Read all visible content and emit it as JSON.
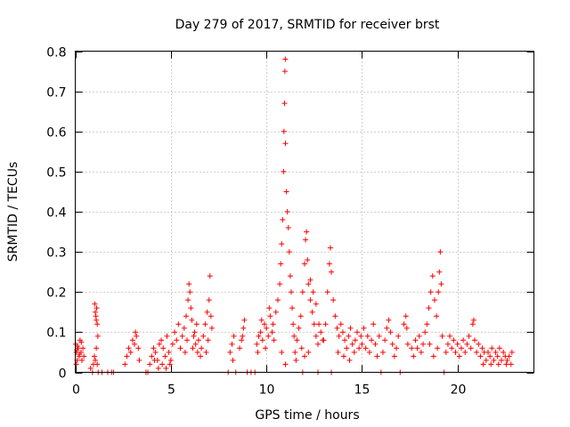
{
  "chart_data": {
    "type": "scatter",
    "title": "Day 279 of 2017, SRMTID for receiver brst",
    "xlabel": "GPS time / hours",
    "ylabel": "SRMTID / TECUs",
    "xlim": [
      0,
      24
    ],
    "ylim": [
      0,
      0.8
    ],
    "xticks": [
      0,
      5,
      10,
      15,
      20
    ],
    "yticks": [
      0,
      0.1,
      0.2,
      0.3,
      0.4,
      0.5,
      0.6,
      0.7,
      0.8
    ],
    "ytick_labels": [
      "0",
      "0.1",
      "0.2",
      "0.3",
      "0.4",
      "0.5",
      "0.6",
      "0.7",
      "0.8"
    ],
    "grid": true,
    "marker": "plus",
    "color": "#ff0000",
    "series": [
      {
        "points": [
          [
            0.02,
            0.07
          ],
          [
            0.05,
            0.05
          ],
          [
            0.1,
            0.03
          ],
          [
            0.15,
            0.06
          ],
          [
            0.2,
            0.04
          ],
          [
            0.25,
            0.08
          ],
          [
            0.3,
            0.05
          ],
          [
            0.35,
            0.03
          ],
          [
            0.4,
            0.06
          ],
          [
            0.45,
            0.04
          ],
          [
            0.05,
            0.02
          ],
          [
            0.12,
            0.065
          ],
          [
            0.22,
            0.045
          ],
          [
            0.32,
            0.075
          ],
          [
            0.08,
            0.055
          ],
          [
            0.8,
            0.01
          ],
          [
            0.9,
            0.0
          ],
          [
            0.95,
            0.02
          ],
          [
            1.0,
            0.04
          ],
          [
            1.05,
            0.03
          ],
          [
            1.1,
            0.06
          ],
          [
            1.15,
            0.02
          ],
          [
            1.2,
            0.0
          ],
          [
            1.02,
            0.17
          ],
          [
            1.05,
            0.15
          ],
          [
            1.08,
            0.14
          ],
          [
            1.1,
            0.13
          ],
          [
            1.12,
            0.16
          ],
          [
            1.15,
            0.12
          ],
          [
            1.18,
            0.09
          ],
          [
            1.4,
            0.0
          ],
          [
            1.7,
            0.0
          ],
          [
            1.9,
            0.0
          ],
          [
            2.0,
            0.0
          ],
          [
            2.6,
            0.02
          ],
          [
            2.7,
            0.04
          ],
          [
            2.8,
            0.06
          ],
          [
            2.9,
            0.05
          ],
          [
            3.0,
            0.08
          ],
          [
            3.1,
            0.07
          ],
          [
            3.2,
            0.09
          ],
          [
            3.3,
            0.06
          ],
          [
            3.35,
            0.03
          ],
          [
            3.15,
            0.1
          ],
          [
            3.7,
            0.0
          ],
          [
            3.8,
            0.0
          ],
          [
            3.9,
            0.02
          ],
          [
            4.0,
            0.04
          ],
          [
            4.1,
            0.06
          ],
          [
            4.2,
            0.05
          ],
          [
            4.3,
            0.03
          ],
          [
            4.4,
            0.07
          ],
          [
            4.5,
            0.08
          ],
          [
            4.6,
            0.06
          ],
          [
            4.7,
            0.04
          ],
          [
            4.8,
            0.09
          ],
          [
            4.9,
            0.05
          ],
          [
            5.0,
            0.03
          ],
          [
            5.1,
            0.07
          ],
          [
            5.2,
            0.1
          ],
          [
            5.3,
            0.08
          ],
          [
            5.4,
            0.12
          ],
          [
            5.5,
            0.06
          ],
          [
            5.6,
            0.09
          ],
          [
            4.15,
            0.03
          ],
          [
            4.35,
            0.01
          ],
          [
            4.55,
            0.02
          ],
          [
            4.75,
            0.01
          ],
          [
            4.95,
            0.02
          ],
          [
            5.7,
            0.11
          ],
          [
            5.8,
            0.14
          ],
          [
            5.9,
            0.18
          ],
          [
            5.95,
            0.22
          ],
          [
            6.0,
            0.2
          ],
          [
            6.05,
            0.16
          ],
          [
            6.1,
            0.13
          ],
          [
            6.2,
            0.09
          ],
          [
            6.3,
            0.07
          ],
          [
            6.4,
            0.05
          ],
          [
            5.75,
            0.05
          ],
          [
            5.85,
            0.08
          ],
          [
            6.15,
            0.06
          ],
          [
            6.25,
            0.1
          ],
          [
            6.35,
            0.12
          ],
          [
            6.45,
            0.08
          ],
          [
            6.55,
            0.04
          ],
          [
            6.6,
            0.06
          ],
          [
            6.7,
            0.09
          ],
          [
            6.8,
            0.12
          ],
          [
            6.9,
            0.15
          ],
          [
            7.0,
            0.18
          ],
          [
            7.05,
            0.24
          ],
          [
            7.1,
            0.14
          ],
          [
            7.15,
            0.11
          ],
          [
            6.95,
            0.08
          ],
          [
            6.85,
            0.05
          ],
          [
            8.0,
            0.0
          ],
          [
            8.1,
            0.05
          ],
          [
            8.2,
            0.07
          ],
          [
            8.3,
            0.09
          ],
          [
            8.25,
            0.03
          ],
          [
            8.4,
            0.0
          ],
          [
            8.6,
            0.06
          ],
          [
            8.7,
            0.08
          ],
          [
            8.8,
            0.11
          ],
          [
            8.85,
            0.13
          ],
          [
            8.75,
            0.09
          ],
          [
            9.0,
            0.0
          ],
          [
            9.2,
            0.0
          ],
          [
            9.4,
            0.0
          ],
          [
            9.5,
            0.07
          ],
          [
            9.6,
            0.09
          ],
          [
            9.7,
            0.1
          ],
          [
            9.8,
            0.08
          ],
          [
            9.9,
            0.12
          ],
          [
            10.0,
            0.11
          ],
          [
            10.1,
            0.09
          ],
          [
            10.2,
            0.14
          ],
          [
            10.3,
            0.1
          ],
          [
            10.4,
            0.08
          ],
          [
            9.55,
            0.05
          ],
          [
            9.75,
            0.13
          ],
          [
            9.95,
            0.06
          ],
          [
            10.15,
            0.16
          ],
          [
            10.35,
            0.12
          ],
          [
            10.5,
            0.15
          ],
          [
            10.6,
            0.18
          ],
          [
            10.7,
            0.22
          ],
          [
            10.75,
            0.27
          ],
          [
            10.8,
            0.32
          ],
          [
            10.85,
            0.38
          ],
          [
            10.9,
            0.5
          ],
          [
            10.92,
            0.6
          ],
          [
            10.95,
            0.67
          ],
          [
            10.97,
            0.75
          ],
          [
            10.99,
            0.78
          ],
          [
            11.0,
            0.57
          ],
          [
            11.05,
            0.45
          ],
          [
            11.1,
            0.4
          ],
          [
            11.15,
            0.36
          ],
          [
            11.2,
            0.3
          ],
          [
            11.25,
            0.24
          ],
          [
            11.3,
            0.2
          ],
          [
            11.35,
            0.16
          ],
          [
            11.4,
            0.12
          ],
          [
            11.45,
            0.09
          ],
          [
            11.5,
            0.05
          ],
          [
            11.55,
            0.03
          ],
          [
            11.0,
            0.02
          ],
          [
            10.8,
            0.05
          ],
          [
            11.6,
            0.08
          ],
          [
            11.7,
            0.11
          ],
          [
            11.8,
            0.14
          ],
          [
            11.9,
            0.2
          ],
          [
            12.0,
            0.27
          ],
          [
            12.05,
            0.33
          ],
          [
            12.1,
            0.35
          ],
          [
            12.15,
            0.28
          ],
          [
            12.2,
            0.22
          ],
          [
            12.3,
            0.18
          ],
          [
            12.4,
            0.15
          ],
          [
            12.5,
            0.12
          ],
          [
            12.6,
            0.09
          ],
          [
            12.7,
            0.07
          ],
          [
            12.3,
            0.23
          ],
          [
            12.45,
            0.2
          ],
          [
            12.6,
            0.17
          ],
          [
            12.75,
            0.12
          ],
          [
            12.85,
            0.1
          ],
          [
            12.95,
            0.08
          ],
          [
            11.85,
            0.06
          ],
          [
            12.0,
            0.04
          ],
          [
            12.2,
            0.05
          ],
          [
            11.9,
            0.0
          ],
          [
            12.7,
            0.0
          ],
          [
            13.0,
            0.08
          ],
          [
            13.1,
            0.12
          ],
          [
            13.2,
            0.2
          ],
          [
            13.3,
            0.27
          ],
          [
            13.35,
            0.31
          ],
          [
            13.4,
            0.25
          ],
          [
            13.5,
            0.18
          ],
          [
            13.6,
            0.14
          ],
          [
            13.7,
            0.11
          ],
          [
            13.8,
            0.09
          ],
          [
            13.9,
            0.12
          ],
          [
            14.0,
            0.1
          ],
          [
            14.1,
            0.08
          ],
          [
            14.2,
            0.06
          ],
          [
            14.3,
            0.09
          ],
          [
            14.4,
            0.11
          ],
          [
            14.5,
            0.07
          ],
          [
            14.6,
            0.05
          ],
          [
            13.4,
            0.0
          ],
          [
            13.75,
            0.05
          ],
          [
            14.05,
            0.04
          ],
          [
            14.35,
            0.03
          ],
          [
            14.65,
            0.08
          ],
          [
            14.75,
            0.1
          ],
          [
            14.85,
            0.06
          ],
          [
            14.95,
            0.09
          ],
          [
            15.0,
            0.07
          ],
          [
            15.1,
            0.11
          ],
          [
            15.2,
            0.06
          ],
          [
            15.3,
            0.09
          ],
          [
            15.4,
            0.05
          ],
          [
            15.5,
            0.08
          ],
          [
            15.6,
            0.12
          ],
          [
            15.7,
            0.07
          ],
          [
            15.8,
            0.04
          ],
          [
            15.9,
            0.09
          ],
          [
            16.0,
            0.0
          ],
          [
            16.1,
            0.05
          ],
          [
            16.2,
            0.08
          ],
          [
            16.3,
            0.11
          ],
          [
            16.4,
            0.13
          ],
          [
            16.5,
            0.1
          ],
          [
            16.6,
            0.07
          ],
          [
            16.7,
            0.04
          ],
          [
            16.8,
            0.06
          ],
          [
            16.9,
            0.09
          ],
          [
            17.0,
            0.0
          ],
          [
            17.2,
            0.12
          ],
          [
            17.3,
            0.14
          ],
          [
            17.35,
            0.11
          ],
          [
            17.4,
            0.07
          ],
          [
            17.6,
            0.06
          ],
          [
            17.7,
            0.04
          ],
          [
            17.8,
            0.08
          ],
          [
            17.9,
            0.06
          ],
          [
            18.0,
            0.09
          ],
          [
            18.1,
            0.05
          ],
          [
            18.2,
            0.07
          ],
          [
            18.3,
            0.1
          ],
          [
            18.4,
            0.12
          ],
          [
            18.5,
            0.16
          ],
          [
            18.6,
            0.2
          ],
          [
            18.7,
            0.24
          ],
          [
            18.8,
            0.18
          ],
          [
            18.9,
            0.14
          ],
          [
            19.0,
            0.2
          ],
          [
            19.05,
            0.25
          ],
          [
            19.1,
            0.3
          ],
          [
            19.15,
            0.22
          ],
          [
            18.55,
            0.07
          ],
          [
            18.75,
            0.04
          ],
          [
            18.95,
            0.06
          ],
          [
            19.2,
            0.09
          ],
          [
            19.3,
            0.0
          ],
          [
            19.4,
            0.05
          ],
          [
            19.5,
            0.07
          ],
          [
            19.6,
            0.09
          ],
          [
            19.7,
            0.06
          ],
          [
            19.8,
            0.08
          ],
          [
            19.9,
            0.05
          ],
          [
            20.0,
            0.07
          ],
          [
            20.1,
            0.04
          ],
          [
            20.2,
            0.06
          ],
          [
            20.3,
            0.08
          ],
          [
            20.4,
            0.05
          ],
          [
            20.5,
            0.07
          ],
          [
            20.6,
            0.09
          ],
          [
            20.7,
            0.06
          ],
          [
            20.8,
            0.12
          ],
          [
            20.85,
            0.13
          ],
          [
            20.9,
            0.08
          ],
          [
            21.0,
            0.05
          ],
          [
            21.1,
            0.07
          ],
          [
            21.2,
            0.04
          ],
          [
            21.3,
            0.06
          ],
          [
            21.4,
            0.05
          ],
          [
            21.5,
            0.03
          ],
          [
            21.6,
            0.05
          ],
          [
            21.7,
            0.04
          ],
          [
            21.8,
            0.06
          ],
          [
            21.9,
            0.03
          ],
          [
            22.0,
            0.05
          ],
          [
            22.1,
            0.04
          ],
          [
            22.2,
            0.06
          ],
          [
            22.3,
            0.03
          ],
          [
            22.4,
            0.05
          ],
          [
            22.5,
            0.04
          ],
          [
            22.6,
            0.03
          ],
          [
            22.7,
            0.04
          ],
          [
            22.8,
            0.02
          ],
          [
            22.85,
            0.05
          ],
          [
            21.35,
            0.02
          ],
          [
            21.75,
            0.02
          ],
          [
            22.15,
            0.02
          ],
          [
            22.55,
            0.02
          ]
        ]
      }
    ]
  }
}
